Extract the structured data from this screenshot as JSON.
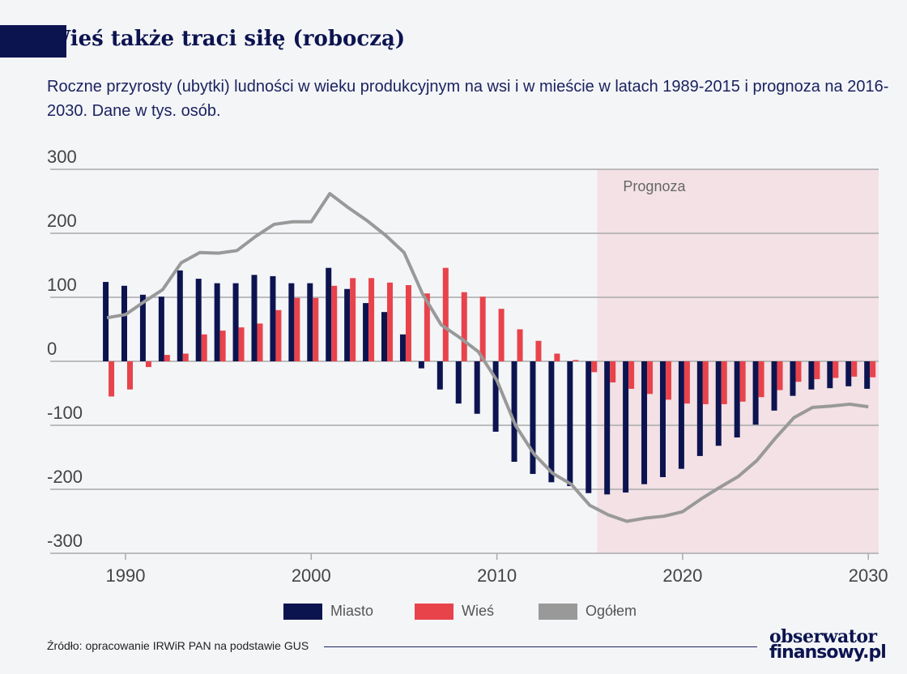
{
  "title": "Wieś także traci siłę (roboczą)",
  "subtitle": "Roczne przyrosty (ubytki) ludności w wieku produkcyjnym na wsi i w mieście w latach 1989-2015 i prognoza na 2016-2030. Dane w tys. osób.",
  "source": "Źródło: opracowanie IRWiR PAN na podstawie GUS",
  "logo": {
    "line1": "obserwator",
    "line2": "finansowy.pl"
  },
  "colors": {
    "miasto": "#0c1450",
    "wies": "#e8434b",
    "ogolem": "#999999",
    "forecast_shade": "#f3e1e6",
    "accent": "#0c1450"
  },
  "chart_data": {
    "type": "bar+line",
    "title": "",
    "xlabel": "",
    "ylabel": "",
    "ylim": [
      -300,
      300
    ],
    "xlim": [
      1986,
      2030.6
    ],
    "yticks": [
      300,
      200,
      100,
      0,
      -100,
      -200,
      -300
    ],
    "xticks": [
      1990,
      2000,
      2010,
      2020,
      2030
    ],
    "grid": true,
    "legend_position": "bottom",
    "forecast": {
      "label": "Prognoza",
      "from": 2015.4,
      "to": 2030.6
    },
    "x": [
      1989,
      1990,
      1991,
      1992,
      1993,
      1994,
      1995,
      1996,
      1997,
      1998,
      1999,
      2000,
      2001,
      2002,
      2003,
      2004,
      2005,
      2006,
      2007,
      2008,
      2009,
      2010,
      2011,
      2012,
      2013,
      2014,
      2015,
      2016,
      2017,
      2018,
      2019,
      2020,
      2021,
      2022,
      2023,
      2024,
      2025,
      2026,
      2027,
      2028,
      2029,
      2030
    ],
    "series": [
      {
        "name": "Miasto",
        "type": "bar",
        "values": [
          124,
          118,
          104,
          101,
          142,
          129,
          122,
          122,
          135,
          133,
          122,
          122,
          146,
          113,
          91,
          77,
          42,
          -11,
          -44,
          -66,
          -82,
          -110,
          -157,
          -176,
          -189,
          -195,
          -206,
          -208,
          -205,
          -192,
          -181,
          -168,
          -148,
          -132,
          -119,
          -99,
          -77,
          -54,
          -44,
          -42,
          -39,
          -43
        ]
      },
      {
        "name": "Wieś",
        "type": "bar",
        "values": [
          -55,
          -44,
          -9,
          10,
          12,
          42,
          48,
          53,
          59,
          80,
          99,
          99,
          118,
          130,
          130,
          123,
          119,
          106,
          146,
          108,
          101,
          82,
          50,
          32,
          12,
          2,
          -17,
          -33,
          -43,
          -51,
          -60,
          -66,
          -67,
          -67,
          -63,
          -56,
          -45,
          -32,
          -28,
          -26,
          -24,
          -25
        ]
      },
      {
        "name": "Ogółem",
        "type": "line",
        "values": [
          68,
          73,
          93,
          112,
          154,
          170,
          169,
          173,
          195,
          214,
          218,
          218,
          262,
          240,
          220,
          197,
          170,
          105,
          57,
          37,
          15,
          -30,
          -100,
          -145,
          -175,
          -192,
          -225,
          -240,
          -250,
          -245,
          -242,
          -235,
          -215,
          -197,
          -180,
          -155,
          -120,
          -88,
          -72,
          -70,
          -67,
          -71
        ]
      }
    ]
  }
}
